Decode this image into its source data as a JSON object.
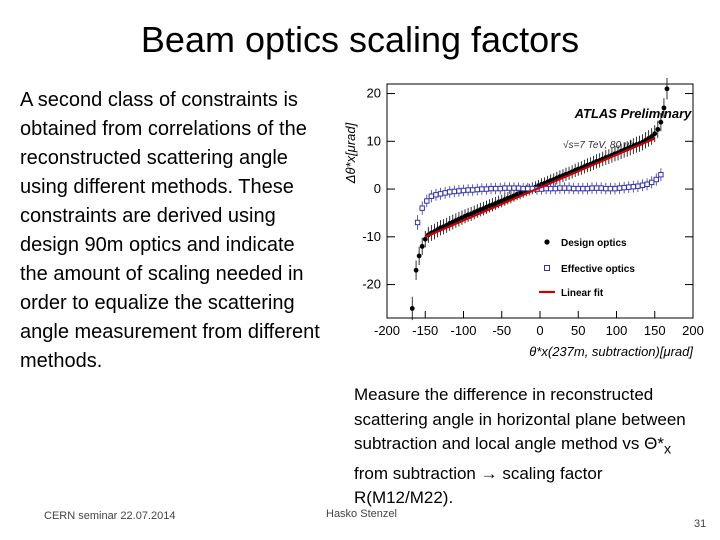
{
  "slide": {
    "title": "Beam optics scaling factors",
    "body": "A second class of constraints is obtained from correlations of the reconstructed scattering angle using different methods.  These constraints are derived using design 90m optics and indicate the amount of scaling needed in order to equalize the scattering angle measurement from different methods.",
    "caption_parts": {
      "pre": "Measure the difference in reconstructed scattering angle in horizontal plane between subtraction and local angle method vs Θ*",
      "sub": "x",
      "post": " from subtraction → scaling factor R(M12/M22)."
    }
  },
  "footer": {
    "left": "CERN seminar 22.07.2014",
    "center": "Hasko Stenzel",
    "page_number": "31"
  },
  "chart_data": {
    "type": "scatter",
    "title": "ATLAS Preliminary",
    "annotation": "√s=7 TeV, 80 μb⁻¹",
    "ylabel": "Δθ*x[μrad]",
    "xlabel": "θ*x(237m, subtraction)[μrad]",
    "xlim": [
      -200,
      200
    ],
    "ylim": [
      -27,
      22
    ],
    "xticks": [
      -200,
      -150,
      -100,
      -50,
      0,
      50,
      100,
      150,
      200
    ],
    "yticks": [
      20,
      10,
      0,
      -10,
      -20
    ],
    "legend": {
      "position": "bottom-right",
      "entries": [
        "Design optics",
        "Effective optics",
        "Linear fit"
      ]
    },
    "series": [
      {
        "name": "Design optics",
        "marker": "filled-circle",
        "color": "#000000",
        "x": [
          -167,
          -162,
          -158,
          -154,
          -150,
          -146,
          -142,
          -138,
          -134,
          -130,
          -126,
          -122,
          -118,
          -114,
          -110,
          -106,
          -102,
          -98,
          -94,
          -90,
          -86,
          -82,
          -78,
          -74,
          -70,
          -66,
          -62,
          -58,
          -54,
          -50,
          -46,
          -42,
          -38,
          -34,
          -30,
          -26,
          -22,
          -18,
          -14,
          -10,
          -6,
          -2,
          2,
          6,
          10,
          14,
          18,
          22,
          26,
          30,
          34,
          38,
          42,
          46,
          50,
          54,
          58,
          62,
          66,
          70,
          74,
          78,
          82,
          86,
          90,
          94,
          98,
          102,
          106,
          110,
          114,
          118,
          122,
          126,
          130,
          134,
          138,
          142,
          146,
          150,
          154,
          158,
          162,
          166
        ],
        "y": [
          -25,
          -17,
          -14,
          -12,
          -10.5,
          -9.6,
          -9.2,
          -8.9,
          -8.5,
          -8.1,
          -7.9,
          -7.6,
          -7.2,
          -6.9,
          -6.6,
          -6.3,
          -6.0,
          -5.7,
          -5.4,
          -5.2,
          -4.9,
          -4.6,
          -4.3,
          -4.1,
          -3.8,
          -3.5,
          -3.3,
          -3.0,
          -2.7,
          -2.5,
          -2.2,
          -1.9,
          -1.7,
          -1.4,
          -1.1,
          -0.9,
          -0.6,
          -0.3,
          -0.1,
          0.2,
          0.4,
          0.7,
          1.0,
          1.2,
          1.5,
          1.8,
          2.0,
          2.3,
          2.6,
          2.8,
          3.1,
          3.3,
          3.6,
          3.9,
          4.2,
          4.4,
          4.7,
          5.0,
          5.2,
          5.5,
          5.8,
          6.0,
          6.3,
          6.6,
          6.8,
          7.1,
          7.4,
          7.6,
          7.9,
          8.2,
          8.4,
          8.7,
          9.0,
          9.3,
          9.5,
          9.8,
          10.2,
          10.6,
          11.0,
          11.6,
          12.5,
          14,
          17,
          21
        ]
      },
      {
        "name": "Effective optics",
        "marker": "open-square",
        "color": "#3333aa",
        "x": [
          -160,
          -154,
          -148,
          -142,
          -136,
          -130,
          -124,
          -118,
          -112,
          -106,
          -100,
          -94,
          -88,
          -82,
          -76,
          -70,
          -64,
          -58,
          -52,
          -46,
          -40,
          -34,
          -28,
          -22,
          -16,
          -10,
          -4,
          2,
          8,
          14,
          20,
          26,
          32,
          38,
          44,
          50,
          56,
          62,
          68,
          74,
          80,
          86,
          92,
          98,
          104,
          110,
          116,
          122,
          128,
          134,
          140,
          146,
          152,
          158
        ],
        "y": [
          -7,
          -4,
          -2.5,
          -1.5,
          -1.2,
          -1.0,
          -0.8,
          -0.6,
          -0.5,
          -0.4,
          -0.3,
          -0.2,
          -0.2,
          -0.1,
          0,
          0,
          0.1,
          0.1,
          0.1,
          0.2,
          0.2,
          0.2,
          0.2,
          0.1,
          0.1,
          0.1,
          0,
          0,
          0.1,
          0.1,
          0.1,
          0.2,
          0.2,
          0.2,
          0.1,
          0.1,
          0.1,
          0.1,
          0.2,
          0.2,
          0.2,
          0.1,
          0.1,
          0.1,
          0.2,
          0.3,
          0.4,
          0.5,
          0.6,
          0.8,
          1.0,
          1.4,
          2.0,
          3.0
        ]
      },
      {
        "name": "Linear fit",
        "type": "line",
        "color": "#cc0000",
        "x": [
          -150,
          150
        ],
        "y": [
          -10,
          10.6
        ]
      }
    ]
  }
}
